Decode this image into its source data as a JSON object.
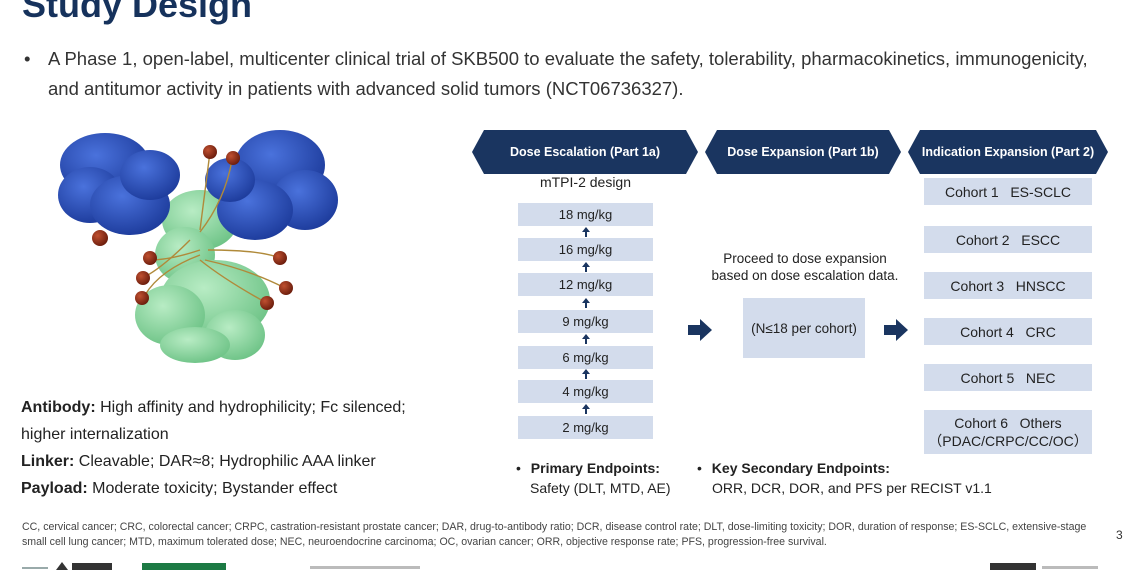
{
  "title": "Study Design",
  "bullet": {
    "marker": "•",
    "text": "A Phase 1, open-label, multicenter clinical trial of SKB500 to evaluate the safety, tolerability, pharmacokinetics, immunogenicity, and antitumor activity in patients with advanced solid tumors (NCT06736327)."
  },
  "properties": {
    "antibody_label": "Antibody:",
    "antibody_text": "High affinity and hydrophilicity; Fc silenced;",
    "antibody_text2": "higher internalization",
    "linker_label": "Linker:",
    "linker_text": "Cleavable; DAR≈8; Hydrophilic AAA linker",
    "payload_label": "Payload:",
    "payload_text": "Moderate toxicity; Bystander effect"
  },
  "phases": {
    "escalation": "Dose Escalation (Part 1a)",
    "expansion": "Dose Expansion (Part 1b)",
    "indication": "Indication Expansion (Part 2)"
  },
  "design_label": "mTPI-2 design",
  "doses": [
    "18 mg/kg",
    "16 mg/kg",
    "12 mg/kg",
    "9 mg/kg",
    "6 mg/kg",
    "4 mg/kg",
    "2 mg/kg"
  ],
  "expansion": {
    "text_line1": "Proceed to dose expansion",
    "text_line2": "based on dose escalation data.",
    "box": "(N≤18 per cohort)"
  },
  "cohorts": [
    "Cohort 1   ES-SCLC",
    "Cohort 2   ESCC",
    "Cohort 3   HNSCC",
    "Cohort 4   CRC",
    "Cohort 5   NEC"
  ],
  "cohort6": {
    "line1": "Cohort 6   Others",
    "line2": "（PDAC/CRPC/CC/OC）"
  },
  "endpoints": {
    "primary_label": "Primary Endpoints:",
    "primary_text": "Safety (DLT, MTD, AE)",
    "secondary_label": "Key Secondary Endpoints:",
    "secondary_text": "ORR, DCR, DOR, and PFS per RECIST v1.1"
  },
  "footnote": "CC, cervical cancer; CRC, colorectal cancer; CRPC, castration-resistant prostate cancer; DAR, drug-to-antibody ratio; DCR, disease control rate; DLT, dose-limiting toxicity; DOR, duration of response; ES-SCLC, extensive-stage small cell lung cancer; MTD, maximum tolerated dose; NEC, neuroendocrine carcinoma; OC, ovarian cancer; ORR, objective response rate; PFS, progression-free survival.",
  "page_number": "3",
  "colors": {
    "navy": "#1a3560",
    "box_fill": "#d3dcec",
    "fab_blue": "#2a4fb8",
    "fc_green": "#8fd6a3",
    "payload_red": "#8a2a14"
  }
}
